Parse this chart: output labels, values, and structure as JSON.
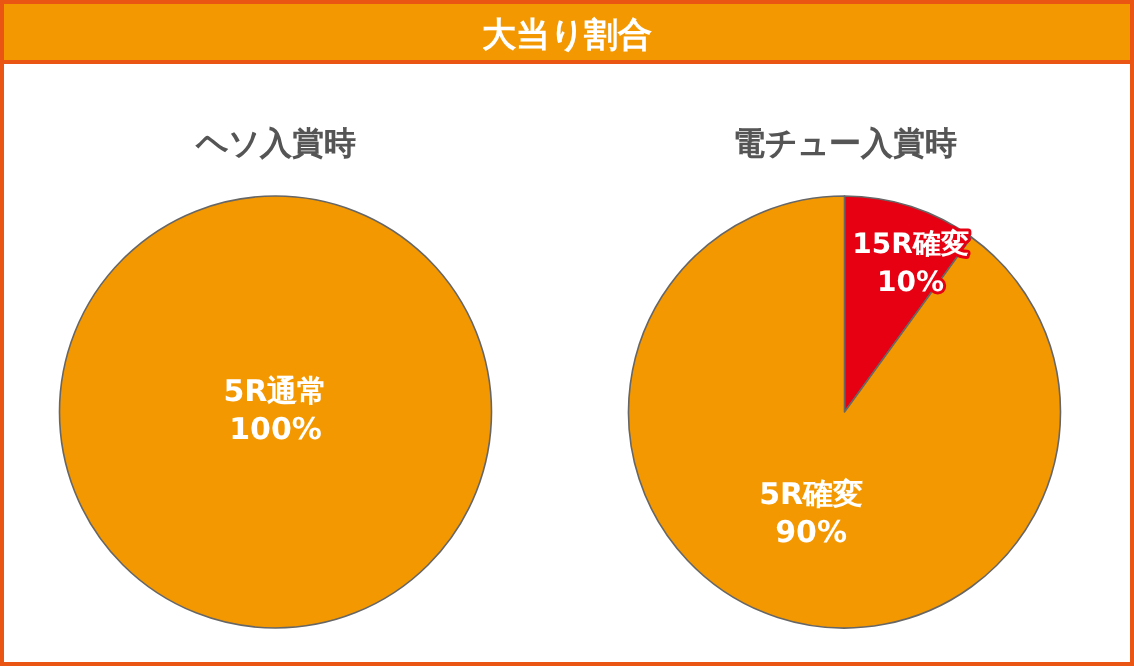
{
  "chart_data": [
    {
      "type": "pie",
      "title": "ヘソ入賞時",
      "annotations": [
        "大当り割合"
      ],
      "categories": [
        "5R通常"
      ],
      "values": [
        100
      ],
      "value_labels": [
        "100%"
      ],
      "colors": [
        "#f39800"
      ]
    },
    {
      "type": "pie",
      "title": "電チュー入賞時",
      "categories": [
        "15R確変",
        "5R確変"
      ],
      "values": [
        10,
        90
      ],
      "value_labels": [
        "10%",
        "90%"
      ],
      "colors": [
        "#e60012",
        "#f39800"
      ]
    }
  ]
}
